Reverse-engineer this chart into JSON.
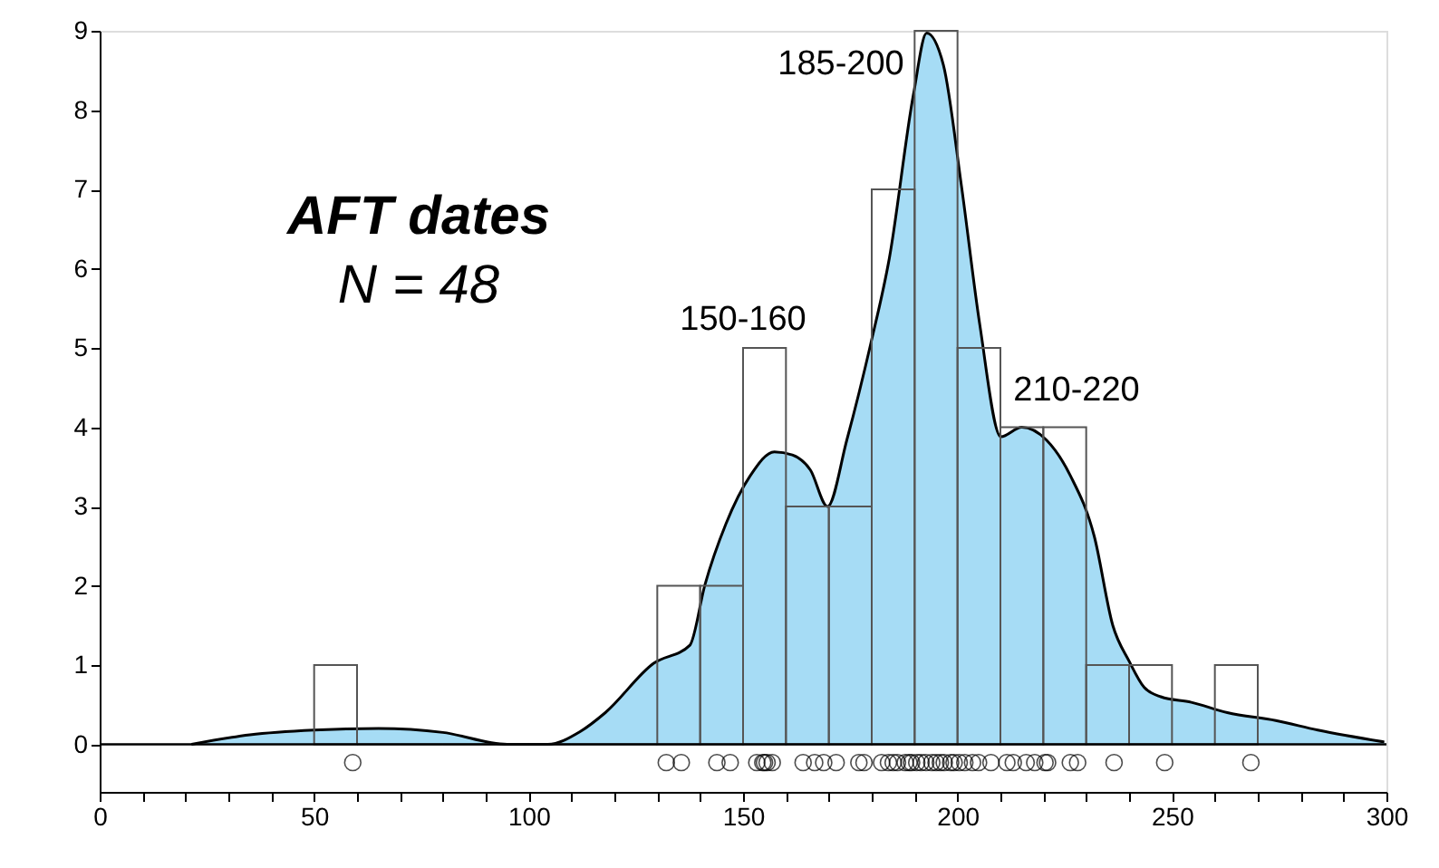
{
  "chart_data": {
    "type": "histogram",
    "bins": [
      50,
      60,
      70,
      80,
      90,
      100,
      110,
      120,
      130,
      140,
      150,
      160,
      170,
      180,
      190,
      200,
      210,
      220,
      230,
      240,
      250,
      260,
      270
    ],
    "values": [
      1,
      0,
      0,
      0,
      0,
      0,
      0,
      0,
      2,
      2,
      5,
      3,
      3,
      7,
      9,
      5,
      4,
      4,
      1,
      1,
      0,
      1
    ],
    "series": [
      {
        "type": "area",
        "color": "#a6dcf5",
        "x": [
          21.4,
          35,
          50,
          65,
          80,
          95,
          104.5,
          112,
          117.9,
          129.1,
          137.6,
          141.1,
          146.0,
          151.7,
          157.3,
          161.5,
          165.7,
          169.7,
          174.2,
          179.8,
          184.1,
          189.7,
          192.8,
          196.7,
          200.9,
          205.2,
          210.1,
          215.0,
          220.7,
          226.3,
          231.9,
          236.2,
          240,
          243.5,
          247.4,
          254.5,
          262.9,
          274.2,
          284.0,
          299.5
        ],
        "values": [
          0,
          0.12,
          0.18,
          0.2,
          0.15,
          0,
          0,
          0.16,
          0.4,
          1.02,
          1.25,
          2.01,
          2.78,
          3.39,
          3.69,
          3.65,
          3.46,
          3.0,
          3.84,
          5.06,
          6.13,
          8.19,
          8.97,
          8.57,
          7.05,
          5.29,
          3.88,
          4.0,
          3.84,
          3.39,
          2.62,
          1.5,
          1.05,
          0.72,
          0.6,
          0.53,
          0.4,
          0.3,
          0.18,
          0.03
        ]
      },
      {
        "type": "scatter",
        "color": "#000000",
        "marker": "circle",
        "x": [
          59,
          132.1,
          135.6,
          143.9,
          147,
          153.2,
          154.6,
          155,
          155.6,
          156.8,
          164,
          166.7,
          168.8,
          171.7,
          177,
          178.2,
          182.3,
          183.9,
          185,
          186,
          187.8,
          188.7,
          189.3,
          190.5,
          191.5,
          192.6,
          194,
          195,
          196,
          196.9,
          198.4,
          199.2,
          200.4,
          201.7,
          203.5,
          204.9,
          207.8,
          211.5,
          213,
          216,
          218,
          220.4,
          221,
          226.3,
          228,
          236.5,
          248.3,
          268.4
        ],
        "values": [
          -0.23,
          -0.23,
          -0.23,
          -0.23,
          -0.23,
          -0.23,
          -0.23,
          -0.23,
          -0.23,
          -0.23,
          -0.23,
          -0.23,
          -0.23,
          -0.23,
          -0.23,
          -0.23,
          -0.23,
          -0.23,
          -0.23,
          -0.23,
          -0.23,
          -0.23,
          -0.23,
          -0.23,
          -0.23,
          -0.23,
          -0.23,
          -0.23,
          -0.23,
          -0.23,
          -0.23,
          -0.23,
          -0.23,
          -0.23,
          -0.23,
          -0.23,
          -0.23,
          -0.23,
          -0.23,
          -0.23,
          -0.23,
          -0.23,
          -0.23,
          -0.23,
          -0.23,
          -0.23,
          -0.23,
          -0.23
        ]
      }
    ],
    "xlim": [
      0,
      300
    ],
    "xticks": [
      0,
      {
        "value": 10,
        "label": null
      },
      {
        "value": 20,
        "label": null
      },
      {
        "value": 30,
        "label": null
      },
      {
        "value": 40,
        "label": null
      },
      50,
      {
        "value": 60,
        "label": null
      },
      {
        "value": 70,
        "label": null
      },
      {
        "value": 80,
        "label": null
      },
      {
        "value": 90,
        "label": null
      },
      100,
      {
        "value": 110,
        "label": null
      },
      {
        "value": 120,
        "label": null
      },
      {
        "value": 130,
        "label": null
      },
      {
        "value": 140,
        "label": null
      },
      150,
      {
        "value": 160,
        "label": null
      },
      {
        "value": 170,
        "label": null
      },
      {
        "value": 180,
        "label": null
      },
      {
        "value": 190,
        "label": null
      },
      200,
      {
        "value": 210,
        "label": null
      },
      {
        "value": 220,
        "label": null
      },
      {
        "value": 230,
        "label": null
      },
      {
        "value": 240,
        "label": null
      },
      250,
      {
        "value": 260,
        "label": null
      },
      {
        "value": 270,
        "label": null
      },
      {
        "value": 280,
        "label": null
      },
      {
        "value": 290,
        "label": null
      },
      300
    ],
    "ylim": [
      -0.6,
      9
    ],
    "yticks": [
      0,
      1,
      2,
      3,
      4,
      5,
      6,
      7,
      8,
      9
    ],
    "ref_lines": [
      {
        "axis": "y",
        "value": 0,
        "color": "#000000"
      }
    ],
    "grid": false,
    "annotations": [
      "AFT dates",
      "N = 48",
      "150-160",
      "185-200",
      "210-220"
    ]
  }
}
